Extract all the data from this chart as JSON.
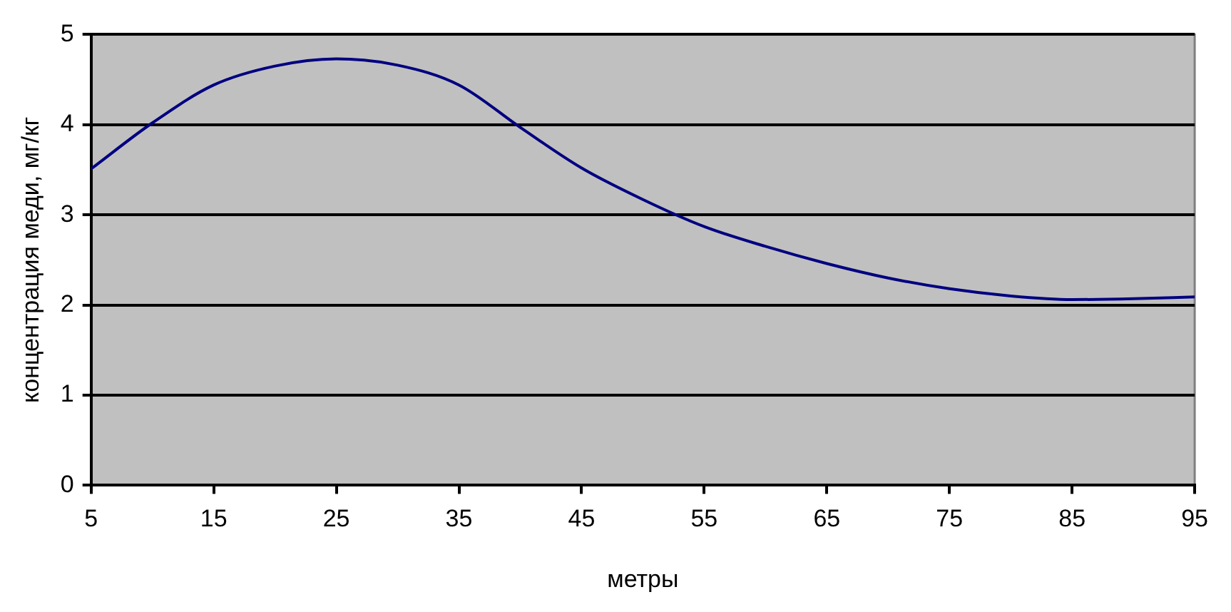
{
  "chart_data": {
    "type": "line",
    "xlabel": "метры",
    "ylabel": "концентрация меди, мг/кг",
    "x": [
      5,
      10,
      15,
      20,
      25,
      30,
      35,
      40,
      45,
      50,
      55,
      60,
      65,
      70,
      75,
      80,
      85,
      90,
      95
    ],
    "series": [
      {
        "color": "#000080",
        "values": [
          3.51,
          4.02,
          4.44,
          4.65,
          4.73,
          4.66,
          4.44,
          3.97,
          3.52,
          3.17,
          2.87,
          2.65,
          2.46,
          2.3,
          2.18,
          2.1,
          2.06,
          2.07,
          2.09
        ]
      }
    ],
    "xlim": [
      5,
      95
    ],
    "xticks": [
      5,
      15,
      25,
      35,
      45,
      55,
      65,
      75,
      85,
      95
    ],
    "ylim": [
      0,
      5
    ],
    "yticks": [
      0,
      1,
      2,
      3,
      4,
      5
    ],
    "grid": "y",
    "legend": false,
    "marker": "none",
    "line_style": "solid"
  }
}
